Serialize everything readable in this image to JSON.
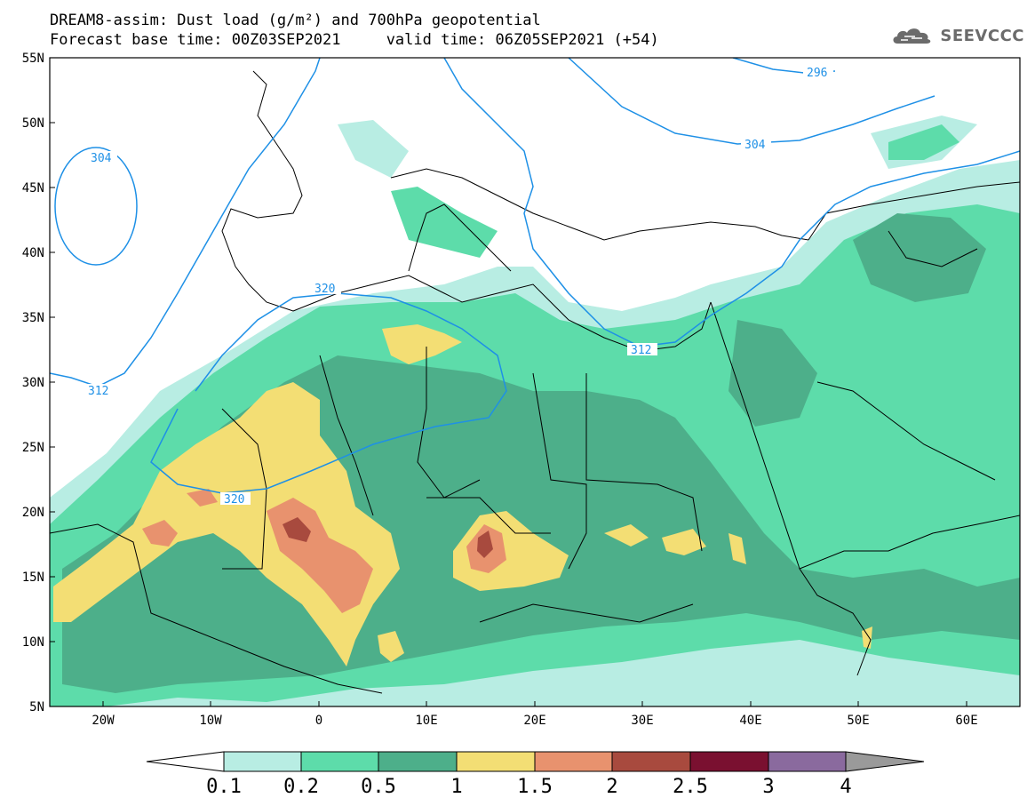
{
  "header": {
    "title": "DREAM8-assim: Dust load (g/m²) and 700hPa geopotential",
    "subtitle": "Forecast base time: 00Z03SEP2021     valid time: 06Z05SEP2021 (+54)"
  },
  "logo": {
    "text": "SEEVCCC",
    "icon": "cloud-logo-icon"
  },
  "colors": {
    "ocean": "#ffffff",
    "coast": "#000000",
    "contour": "#1e90e6",
    "c1": "#b8ede3",
    "c2": "#5ddcaa",
    "c3": "#4daf8a",
    "c4": "#f3de74",
    "c5": "#e8926e",
    "c6": "#a84a3e",
    "c7": "#7a1030",
    "c8": "#8a6a9e",
    "c9": "#9a9a9a"
  },
  "map": {
    "lon_range": [
      -25,
      65
    ],
    "lat_range": [
      5,
      55
    ],
    "lat_ticks": [
      "55N",
      "50N",
      "45N",
      "40N",
      "35N",
      "30N",
      "25N",
      "20N",
      "15N",
      "10N",
      "5N"
    ],
    "lon_ticks": [
      "20W",
      "10W",
      "0",
      "10E",
      "20E",
      "30E",
      "40E",
      "50E",
      "60E"
    ],
    "contour_labels": [
      "304",
      "296",
      "304",
      "320",
      "312",
      "312",
      "320"
    ]
  },
  "colorbar": {
    "labels": [
      "0.1",
      "0.2",
      "0.5",
      "1",
      "1.5",
      "2",
      "2.5",
      "3",
      "4"
    ]
  }
}
